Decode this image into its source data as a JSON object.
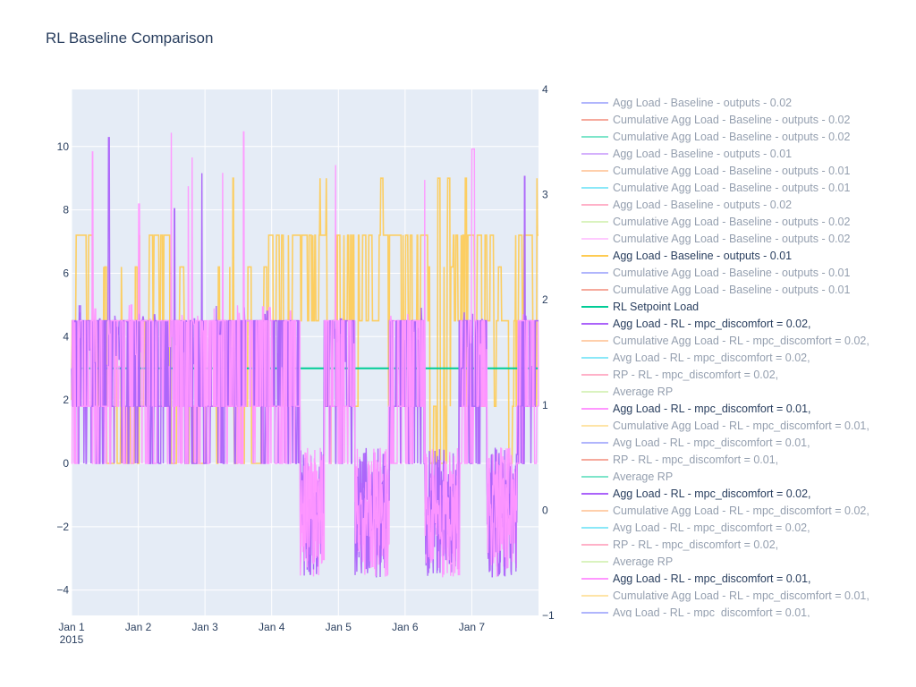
{
  "chart_data": {
    "type": "line",
    "title": "RL Baseline Comparison",
    "xlabel": "",
    "ylabel": "",
    "x_range": [
      "2015-01-01",
      "2015-01-08"
    ],
    "x_ticks": [
      "Jan 1",
      "Jan 2",
      "Jan 3",
      "Jan 4",
      "Jan 5",
      "Jan 6",
      "Jan 7"
    ],
    "x_tick_year": "2015",
    "y_range": [
      -4.8,
      11.8
    ],
    "y_ticks": [
      -4,
      -2,
      0,
      2,
      4,
      6,
      8,
      10
    ],
    "y2_range": [
      -1,
      4
    ],
    "y2_ticks": [
      -1,
      0,
      1,
      2,
      3,
      4
    ],
    "grid": true,
    "legend_position": "right",
    "plot_background": "#e5ecf6",
    "series": [
      {
        "name": "Agg Load - Baseline - outputs  - 0.02",
        "color": "#636efa",
        "visible": false
      },
      {
        "name": "Cumulative Agg Load - Baseline - outputs  - 0.02",
        "color": "#ef553b",
        "visible": false
      },
      {
        "name": "Cumulative Agg Load - Baseline - outputs  - 0.02",
        "color": "#00cc96",
        "visible": false
      },
      {
        "name": "Agg Load - Baseline - outputs  - 0.01",
        "color": "#ab63fa",
        "visible": false
      },
      {
        "name": "Cumulative Agg Load - Baseline - outputs  - 0.01",
        "color": "#ffa15a",
        "visible": false
      },
      {
        "name": "Cumulative Agg Load - Baseline - outputs  - 0.01",
        "color": "#19d3f3",
        "visible": false
      },
      {
        "name": "Agg Load - Baseline - outputs  - 0.02",
        "color": "#ff6692",
        "visible": false
      },
      {
        "name": "Cumulative Agg Load - Baseline - outputs  - 0.02",
        "color": "#b6e880",
        "visible": false
      },
      {
        "name": "Cumulative Agg Load - Baseline - outputs  - 0.02",
        "color": "#ff97ff",
        "visible": false
      },
      {
        "name": "Agg Load - Baseline - outputs  - 0.01",
        "color": "#fecb52",
        "visible": true,
        "note_values": "square-wave between 0 and 7.2, peaks at 9.0"
      },
      {
        "name": "Cumulative Agg Load - Baseline - outputs  - 0.01",
        "color": "#636efa",
        "visible": false
      },
      {
        "name": "Cumulative Agg Load - Baseline - outputs  - 0.01",
        "color": "#ef553b",
        "visible": false
      },
      {
        "name": "RL Setpoint Load",
        "color": "#00cc96",
        "visible": true,
        "constant_value": 3.0
      },
      {
        "name": "Agg Load - RL - mpc_discomfort = 0.02,",
        "color": "#ab63fa",
        "visible": true
      },
      {
        "name": "Cumulative Agg Load - RL - mpc_discomfort = 0.02,",
        "color": "#ffa15a",
        "visible": false
      },
      {
        "name": "Avg Load - RL - mpc_discomfort = 0.02,",
        "color": "#19d3f3",
        "visible": false
      },
      {
        "name": "RP - RL - mpc_discomfort = 0.02,",
        "color": "#ff6692",
        "visible": false
      },
      {
        "name": "Average RP",
        "color": "#b6e880",
        "visible": false
      },
      {
        "name": "Agg Load - RL - mpc_discomfort = 0.01,",
        "color": "#ff97ff",
        "visible": true
      },
      {
        "name": "Cumulative Agg Load - RL - mpc_discomfort = 0.01,",
        "color": "#fecb52",
        "visible": false
      },
      {
        "name": "Avg Load - RL - mpc_discomfort = 0.01,",
        "color": "#636efa",
        "visible": false
      },
      {
        "name": "RP - RL - mpc_discomfort = 0.01,",
        "color": "#ef553b",
        "visible": false
      },
      {
        "name": "Average RP",
        "color": "#00cc96",
        "visible": false
      },
      {
        "name": "Agg Load - RL - mpc_discomfort = 0.02,",
        "color": "#ab63fa",
        "visible": true
      },
      {
        "name": "Cumulative Agg Load - RL - mpc_discomfort = 0.02,",
        "color": "#ffa15a",
        "visible": false
      },
      {
        "name": "Avg Load - RL - mpc_discomfort = 0.02,",
        "color": "#19d3f3",
        "visible": false
      },
      {
        "name": "RP - RL - mpc_discomfort = 0.02,",
        "color": "#ff6692",
        "visible": false
      },
      {
        "name": "Average RP",
        "color": "#b6e880",
        "visible": false
      },
      {
        "name": "Agg Load - RL - mpc_discomfort = 0.01,",
        "color": "#ff97ff",
        "visible": true
      },
      {
        "name": "Cumulative Agg Load - RL - mpc_discomfort = 0.01,",
        "color": "#fecb52",
        "visible": false
      },
      {
        "name": "Avg Load - RL - mpc_discomfort = 0.01,",
        "color": "#636efa",
        "visible": false
      }
    ]
  }
}
